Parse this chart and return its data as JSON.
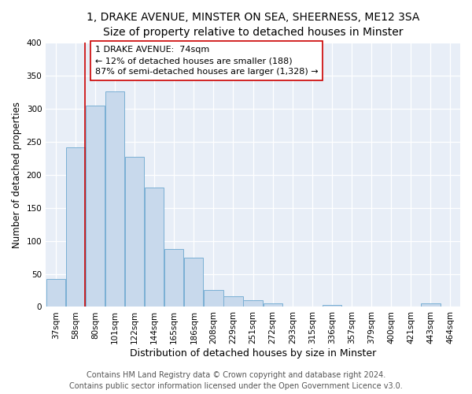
{
  "title": "1, DRAKE AVENUE, MINSTER ON SEA, SHEERNESS, ME12 3SA",
  "subtitle": "Size of property relative to detached houses in Minster",
  "xlabel": "Distribution of detached houses by size in Minster",
  "ylabel": "Number of detached properties",
  "bar_labels": [
    "37sqm",
    "58sqm",
    "80sqm",
    "101sqm",
    "122sqm",
    "144sqm",
    "165sqm",
    "186sqm",
    "208sqm",
    "229sqm",
    "251sqm",
    "272sqm",
    "293sqm",
    "315sqm",
    "336sqm",
    "357sqm",
    "379sqm",
    "400sqm",
    "421sqm",
    "443sqm",
    "464sqm"
  ],
  "bar_values": [
    42,
    241,
    305,
    326,
    227,
    181,
    87,
    74,
    26,
    16,
    10,
    5,
    0,
    0,
    3,
    0,
    0,
    0,
    0,
    5,
    0
  ],
  "bar_color": "#c8d9ec",
  "bar_edge_color": "#7aafd4",
  "vline_x_idx": 2,
  "vline_color": "#cc0000",
  "annotation_line1": "1 DRAKE AVENUE:  74sqm",
  "annotation_line2": "← 12% of detached houses are smaller (188)",
  "annotation_line3": "87% of semi-detached houses are larger (1,328) →",
  "box_edge_color": "#cc0000",
  "ylim": [
    0,
    400
  ],
  "yticks": [
    0,
    50,
    100,
    150,
    200,
    250,
    300,
    350,
    400
  ],
  "footer_line1": "Contains HM Land Registry data © Crown copyright and database right 2024.",
  "footer_line2": "Contains public sector information licensed under the Open Government Licence v3.0.",
  "title_fontsize": 10,
  "subtitle_fontsize": 9.5,
  "xlabel_fontsize": 9,
  "ylabel_fontsize": 8.5,
  "tick_fontsize": 7.5,
  "annotation_fontsize": 8,
  "footer_fontsize": 7,
  "bg_color": "#ffffff",
  "plot_bg_color": "#e8eef7"
}
